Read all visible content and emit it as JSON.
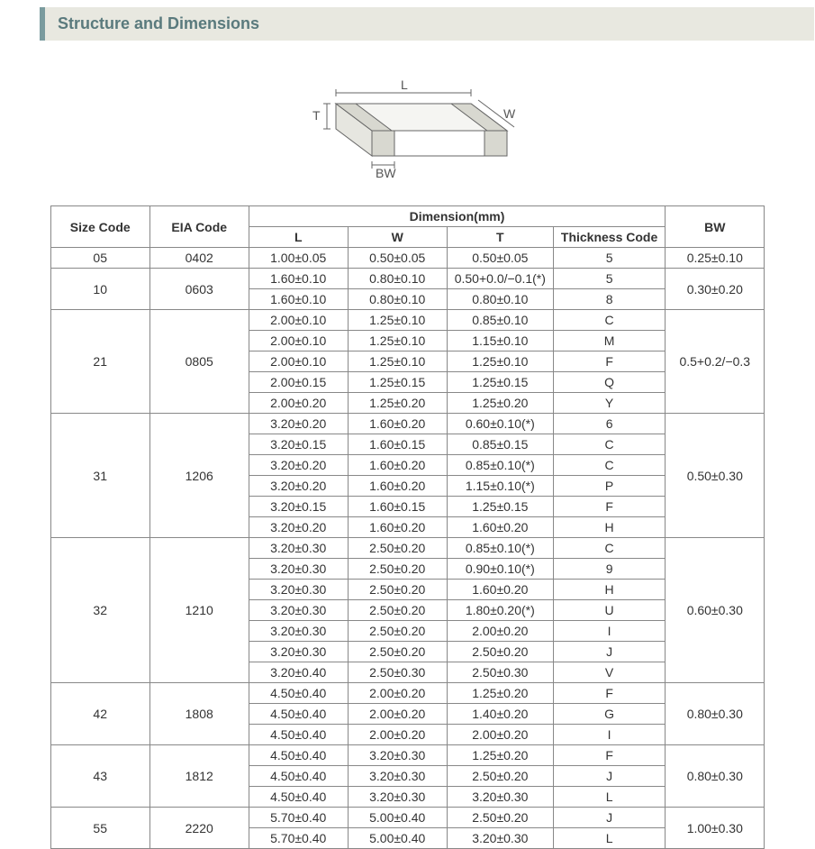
{
  "section_title": "Structure and Dimensions",
  "diagram": {
    "labels": {
      "L": "L",
      "W": "W",
      "T": "T",
      "BW": "BW"
    },
    "stroke": "#666666",
    "fill_top": "#f5f5f2",
    "fill_front": "#ffffff",
    "fill_side": "#e6e6e0",
    "fill_terminal": "#d8d8d0",
    "label_color": "#555555",
    "label_fontsize": 14
  },
  "table": {
    "header": {
      "size_code": "Size Code",
      "eia_code": "EIA Code",
      "dimension_group": "Dimension(mm)",
      "L": "L",
      "W": "W",
      "T": "T",
      "thickness_code": "Thickness  Code",
      "BW": "BW"
    },
    "border_color": "#888888",
    "text_color": "#333333",
    "font_size": 14,
    "groups": [
      {
        "size_code": "05",
        "eia_code": "0402",
        "bw": "0.25±0.10",
        "rows": [
          {
            "L": "1.00±0.05",
            "W": "0.50±0.05",
            "T": "0.50±0.05",
            "tc": "5"
          }
        ]
      },
      {
        "size_code": "10",
        "eia_code": "0603",
        "bw": "0.30±0.20",
        "rows": [
          {
            "L": "1.60±0.10",
            "W": "0.80±0.10",
            "T": "0.50+0.0/−0.1(*)",
            "tc": "5"
          },
          {
            "L": "1.60±0.10",
            "W": "0.80±0.10",
            "T": "0.80±0.10",
            "tc": "8"
          }
        ]
      },
      {
        "size_code": "21",
        "eia_code": "0805",
        "bw": "0.5+0.2/−0.3",
        "rows": [
          {
            "L": "2.00±0.10",
            "W": "1.25±0.10",
            "T": "0.85±0.10",
            "tc": "C"
          },
          {
            "L": "2.00±0.10",
            "W": "1.25±0.10",
            "T": "1.15±0.10",
            "tc": "M"
          },
          {
            "L": "2.00±0.10",
            "W": "1.25±0.10",
            "T": "1.25±0.10",
            "tc": "F"
          },
          {
            "L": "2.00±0.15",
            "W": "1.25±0.15",
            "T": "1.25±0.15",
            "tc": "Q"
          },
          {
            "L": "2.00±0.20",
            "W": "1.25±0.20",
            "T": "1.25±0.20",
            "tc": "Y"
          }
        ]
      },
      {
        "size_code": "31",
        "eia_code": "1206",
        "bw": "0.50±0.30",
        "rows": [
          {
            "L": "3.20±0.20",
            "W": "1.60±0.20",
            "T": "0.60±0.10(*)",
            "tc": "6"
          },
          {
            "L": "3.20±0.15",
            "W": "1.60±0.15",
            "T": "0.85±0.15",
            "tc": "C"
          },
          {
            "L": "3.20±0.20",
            "W": "1.60±0.20",
            "T": "0.85±0.10(*)",
            "tc": "C"
          },
          {
            "L": "3.20±0.20",
            "W": "1.60±0.20",
            "T": "1.15±0.10(*)",
            "tc": "P"
          },
          {
            "L": "3.20±0.15",
            "W": "1.60±0.15",
            "T": "1.25±0.15",
            "tc": "F"
          },
          {
            "L": "3.20±0.20",
            "W": "1.60±0.20",
            "T": "1.60±0.20",
            "tc": "H"
          }
        ]
      },
      {
        "size_code": "32",
        "eia_code": "1210",
        "bw": "0.60±0.30",
        "rows": [
          {
            "L": "3.20±0.30",
            "W": "2.50±0.20",
            "T": "0.85±0.10(*)",
            "tc": "C"
          },
          {
            "L": "3.20±0.30",
            "W": "2.50±0.20",
            "T": "0.90±0.10(*)",
            "tc": "9"
          },
          {
            "L": "3.20±0.30",
            "W": "2.50±0.20",
            "T": "1.60±0.20",
            "tc": "H"
          },
          {
            "L": "3.20±0.30",
            "W": "2.50±0.20",
            "T": "1.80±0.20(*)",
            "tc": "U"
          },
          {
            "L": "3.20±0.30",
            "W": "2.50±0.20",
            "T": "2.00±0.20",
            "tc": "I"
          },
          {
            "L": "3.20±0.30",
            "W": "2.50±0.20",
            "T": "2.50±0.20",
            "tc": "J"
          },
          {
            "L": "3.20±0.40",
            "W": "2.50±0.30",
            "T": "2.50±0.30",
            "tc": "V"
          }
        ]
      },
      {
        "size_code": "42",
        "eia_code": "1808",
        "bw": "0.80±0.30",
        "rows": [
          {
            "L": "4.50±0.40",
            "W": "2.00±0.20",
            "T": "1.25±0.20",
            "tc": "F"
          },
          {
            "L": "4.50±0.40",
            "W": "2.00±0.20",
            "T": "1.40±0.20",
            "tc": "G"
          },
          {
            "L": "4.50±0.40",
            "W": "2.00±0.20",
            "T": "2.00±0.20",
            "tc": "I"
          }
        ]
      },
      {
        "size_code": "43",
        "eia_code": "1812",
        "bw": "0.80±0.30",
        "rows": [
          {
            "L": "4.50±0.40",
            "W": "3.20±0.30",
            "T": "1.25±0.20",
            "tc": "F"
          },
          {
            "L": "4.50±0.40",
            "W": "3.20±0.30",
            "T": "2.50±0.20",
            "tc": "J"
          },
          {
            "L": "4.50±0.40",
            "W": "3.20±0.30",
            "T": "3.20±0.30",
            "tc": "L"
          }
        ]
      },
      {
        "size_code": "55",
        "eia_code": "2220",
        "bw": "1.00±0.30",
        "rows": [
          {
            "L": "5.70±0.40",
            "W": "5.00±0.40",
            "T": "2.50±0.20",
            "tc": "J"
          },
          {
            "L": "5.70±0.40",
            "W": "5.00±0.40",
            "T": "3.20±0.30",
            "tc": "L"
          }
        ]
      }
    ]
  }
}
